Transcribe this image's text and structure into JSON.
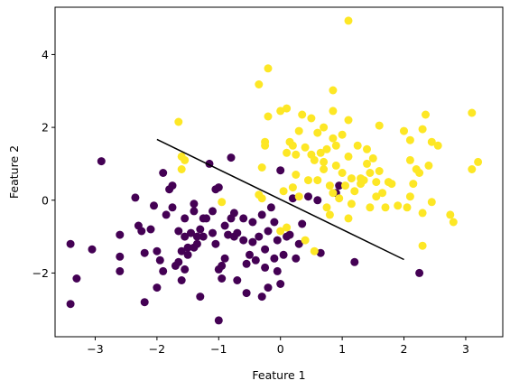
{
  "chart_data": {
    "type": "scatter",
    "title": "",
    "xlabel": "Feature 1",
    "ylabel": "Feature 2",
    "xlim": [
      -3.65,
      3.6
    ],
    "ylim": [
      -3.75,
      5.3
    ],
    "xticks": [
      -3,
      -2,
      -1,
      0,
      1,
      2,
      3
    ],
    "yticks": [
      -2,
      0,
      2,
      4
    ],
    "grid": false,
    "legend": "none",
    "colors": {
      "class0": "#440154",
      "class1": "#fde725",
      "line": "#000000"
    },
    "series": [
      {
        "color": "#440154",
        "points": [
          [
            -3.4,
            -2.85
          ],
          [
            -3.4,
            -1.2
          ],
          [
            -3.3,
            -2.15
          ],
          [
            -2.9,
            1.07
          ],
          [
            -3.05,
            -1.35
          ],
          [
            -2.6,
            -1.55
          ],
          [
            -2.6,
            -1.95
          ],
          [
            -2.6,
            -0.95
          ],
          [
            -2.35,
            0.07
          ],
          [
            -2.3,
            -0.7
          ],
          [
            -2.25,
            -0.85
          ],
          [
            -2.2,
            -2.8
          ],
          [
            -2.2,
            -1.45
          ],
          [
            -2.1,
            -0.8
          ],
          [
            -2.05,
            -0.15
          ],
          [
            -2.0,
            -1.4
          ],
          [
            -2.0,
            -2.4
          ],
          [
            -1.95,
            -1.65
          ],
          [
            -1.9,
            -1.95
          ],
          [
            -1.9,
            0.75
          ],
          [
            -1.85,
            -0.4
          ],
          [
            -1.8,
            0.3
          ],
          [
            -1.75,
            0.4
          ],
          [
            -1.75,
            -0.2
          ],
          [
            -1.7,
            -1.8
          ],
          [
            -1.65,
            -1.7
          ],
          [
            -1.65,
            -0.85
          ],
          [
            -1.6,
            -2.2
          ],
          [
            -1.6,
            -1.4
          ],
          [
            -1.55,
            -1.9
          ],
          [
            -1.55,
            -0.5
          ],
          [
            -1.55,
            -1.0
          ],
          [
            -1.5,
            -1.3
          ],
          [
            -1.5,
            -1.5
          ],
          [
            -1.45,
            -0.9
          ],
          [
            -1.4,
            -1.3
          ],
          [
            -1.4,
            -0.1
          ],
          [
            -1.4,
            -0.3
          ],
          [
            -1.35,
            -1.2
          ],
          [
            -1.35,
            -1.0
          ],
          [
            -1.3,
            -2.65
          ],
          [
            -1.3,
            -0.8
          ],
          [
            -1.25,
            -0.5
          ],
          [
            -1.25,
            -1.0
          ],
          [
            -1.2,
            -0.5
          ],
          [
            -1.15,
            1.0
          ],
          [
            -1.1,
            -0.9
          ],
          [
            -1.1,
            -0.3
          ],
          [
            -1.05,
            0.3
          ],
          [
            -1.05,
            -1.2
          ],
          [
            -1.0,
            -3.3
          ],
          [
            -1.0,
            -1.9
          ],
          [
            -1.0,
            0.35
          ],
          [
            -0.95,
            -2.15
          ],
          [
            -0.95,
            -1.8
          ],
          [
            -0.9,
            -0.7
          ],
          [
            -0.9,
            -1.6
          ],
          [
            -0.85,
            -0.95
          ],
          [
            -0.8,
            1.17
          ],
          [
            -0.8,
            -0.5
          ],
          [
            -0.75,
            -0.35
          ],
          [
            -0.75,
            -1.0
          ],
          [
            -0.7,
            -0.9
          ],
          [
            -0.7,
            -2.2
          ],
          [
            -0.6,
            -1.1
          ],
          [
            -0.6,
            -0.5
          ],
          [
            -0.55,
            -2.55
          ],
          [
            -0.55,
            -1.75
          ],
          [
            -0.5,
            -1.5
          ],
          [
            -0.45,
            -0.6
          ],
          [
            -0.45,
            -1.15
          ],
          [
            -0.4,
            -1.65
          ],
          [
            -0.35,
            -1.0
          ],
          [
            -0.3,
            -2.65
          ],
          [
            -0.3,
            -0.4
          ],
          [
            -0.25,
            -1.35
          ],
          [
            -0.25,
            -1.85
          ],
          [
            -0.2,
            -0.85
          ],
          [
            -0.2,
            -2.4
          ],
          [
            -0.15,
            -0.2
          ],
          [
            -0.1,
            -0.6
          ],
          [
            -0.1,
            -1.6
          ],
          [
            -0.05,
            -1.95
          ],
          [
            -0.05,
            -1.1
          ],
          [
            0.0,
            0.82
          ],
          [
            0.0,
            -2.3
          ],
          [
            0.05,
            -1.5
          ],
          [
            0.1,
            -1.0
          ],
          [
            0.15,
            -0.95
          ],
          [
            0.2,
            0.05
          ],
          [
            0.25,
            -1.6
          ],
          [
            0.3,
            -1.2
          ],
          [
            0.35,
            -0.65
          ],
          [
            0.45,
            0.1
          ],
          [
            0.6,
            0.0
          ],
          [
            0.65,
            -1.45
          ],
          [
            0.9,
            0.2
          ],
          [
            0.95,
            0.4
          ],
          [
            1.2,
            -1.7
          ],
          [
            2.25,
            -2.0
          ]
        ]
      },
      {
        "color": "#fde725",
        "points": [
          [
            1.1,
            4.93
          ],
          [
            -0.2,
            3.62
          ],
          [
            -0.35,
            3.18
          ],
          [
            0.85,
            3.02
          ],
          [
            -0.25,
            1.5
          ],
          [
            -0.2,
            2.3
          ],
          [
            -0.25,
            1.6
          ],
          [
            0.0,
            2.45
          ],
          [
            0.1,
            1.3
          ],
          [
            0.1,
            2.52
          ],
          [
            0.15,
            1.6
          ],
          [
            0.2,
            1.5
          ],
          [
            0.25,
            0.7
          ],
          [
            0.25,
            1.25
          ],
          [
            0.3,
            1.9
          ],
          [
            0.35,
            2.35
          ],
          [
            0.4,
            1.45
          ],
          [
            0.5,
            1.25
          ],
          [
            0.5,
            2.25
          ],
          [
            0.55,
            1.1
          ],
          [
            0.6,
            1.85
          ],
          [
            0.6,
            0.55
          ],
          [
            0.65,
            1.3
          ],
          [
            0.7,
            0.85
          ],
          [
            0.7,
            2.0
          ],
          [
            0.75,
            1.4
          ],
          [
            0.8,
            0.4
          ],
          [
            0.85,
            1.7
          ],
          [
            0.85,
            0.2
          ],
          [
            0.85,
            2.45
          ],
          [
            0.9,
            0.95
          ],
          [
            0.9,
            1.5
          ],
          [
            0.95,
            0.05
          ],
          [
            1.0,
            0.75
          ],
          [
            1.0,
            1.8
          ],
          [
            1.05,
            0.4
          ],
          [
            1.1,
            2.2
          ],
          [
            1.1,
            1.2
          ],
          [
            1.1,
            -0.5
          ],
          [
            1.15,
            0.6
          ],
          [
            1.2,
            0.25
          ],
          [
            1.25,
            1.5
          ],
          [
            1.3,
            0.45
          ],
          [
            1.35,
            0.55
          ],
          [
            1.4,
            1.0
          ],
          [
            1.45,
            0.75
          ],
          [
            1.45,
            -0.2
          ],
          [
            1.5,
            1.15
          ],
          [
            1.55,
            0.5
          ],
          [
            1.55,
            0.1
          ],
          [
            1.6,
            2.05
          ],
          [
            1.6,
            0.8
          ],
          [
            1.65,
            0.2
          ],
          [
            1.7,
            -0.2
          ],
          [
            1.75,
            0.5
          ],
          [
            1.9,
            -0.15
          ],
          [
            2.0,
            1.9
          ],
          [
            2.05,
            -0.2
          ],
          [
            2.1,
            1.65
          ],
          [
            2.1,
            1.1
          ],
          [
            2.15,
            0.45
          ],
          [
            2.2,
            0.85
          ],
          [
            2.25,
            0.75
          ],
          [
            2.3,
            1.95
          ],
          [
            2.3,
            -0.35
          ],
          [
            2.3,
            -1.25
          ],
          [
            2.35,
            2.35
          ],
          [
            2.4,
            0.95
          ],
          [
            2.45,
            -0.05
          ],
          [
            2.45,
            1.6
          ],
          [
            2.55,
            1.5
          ],
          [
            2.75,
            -0.4
          ],
          [
            2.8,
            -0.6
          ],
          [
            3.1,
            0.85
          ],
          [
            3.1,
            2.4
          ],
          [
            3.2,
            1.05
          ],
          [
            -1.65,
            2.15
          ],
          [
            -1.6,
            1.2
          ],
          [
            -1.55,
            1.1
          ],
          [
            -1.6,
            0.85
          ],
          [
            -0.3,
            0.9
          ],
          [
            -0.35,
            0.15
          ],
          [
            -0.3,
            0.05
          ],
          [
            0.0,
            -0.85
          ],
          [
            0.1,
            -0.75
          ],
          [
            0.3,
            0.1
          ],
          [
            0.45,
            0.55
          ],
          [
            0.55,
            -1.4
          ],
          [
            0.75,
            -0.2
          ],
          [
            1.15,
            -0.1
          ],
          [
            0.2,
            0.35
          ],
          [
            0.8,
            -0.4
          ],
          [
            0.05,
            0.25
          ],
          [
            1.3,
            0.6
          ],
          [
            1.8,
            0.45
          ],
          [
            2.1,
            0.1
          ],
          [
            0.4,
            -1.1
          ],
          [
            0.7,
            1.05
          ],
          [
            1.4,
            1.4
          ],
          [
            -0.95,
            -0.05
          ]
        ]
      }
    ],
    "decision_line": {
      "x": [
        -2.0,
        2.0
      ],
      "y": [
        1.67,
        -1.63
      ]
    }
  }
}
